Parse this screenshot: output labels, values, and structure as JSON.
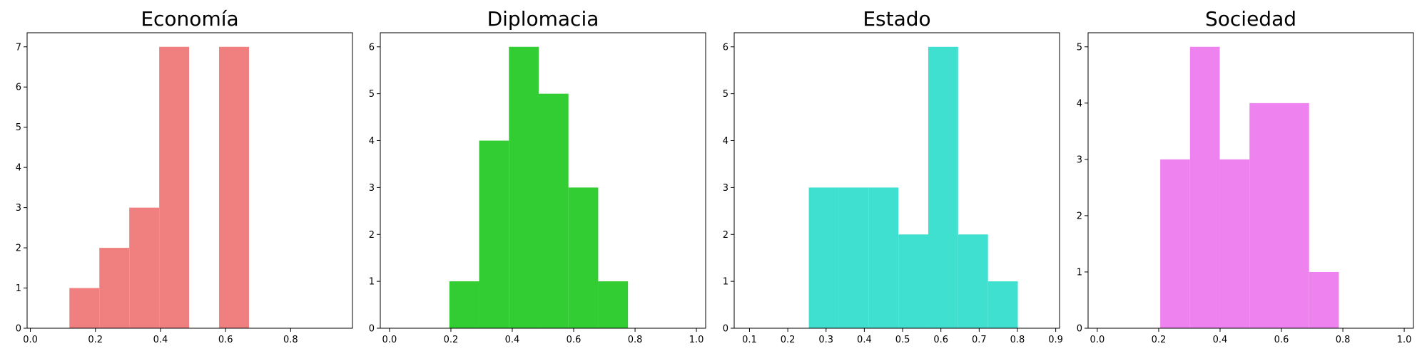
{
  "chart_data": [
    {
      "type": "bar",
      "title": "Economía",
      "color": "#f08080",
      "xlim": [
        -0.01,
        0.99
      ],
      "ylim": [
        0,
        7.35
      ],
      "xticks": [
        "0.0",
        "0.2",
        "0.4",
        "0.6",
        "0.8"
      ],
      "xtick_values": [
        0.0,
        0.2,
        0.4,
        0.6,
        0.8
      ],
      "yticks": [
        "0",
        "1",
        "2",
        "3",
        "4",
        "5",
        "6",
        "7"
      ],
      "ytick_values": [
        0,
        1,
        2,
        3,
        4,
        5,
        6,
        7
      ],
      "bins": [
        {
          "start": 0.12,
          "end": 0.212,
          "count": 1
        },
        {
          "start": 0.212,
          "end": 0.304,
          "count": 2
        },
        {
          "start": 0.304,
          "end": 0.396,
          "count": 3
        },
        {
          "start": 0.396,
          "end": 0.488,
          "count": 7
        },
        {
          "start": 0.488,
          "end": 0.58,
          "count": 0
        },
        {
          "start": 0.58,
          "end": 0.672,
          "count": 7
        }
      ]
    },
    {
      "type": "bar",
      "title": "Diplomacia",
      "color": "#32cd32",
      "xlim": [
        -0.03,
        1.03
      ],
      "ylim": [
        0,
        6.3
      ],
      "xticks": [
        "0.0",
        "0.2",
        "0.4",
        "0.6",
        "0.8",
        "1.0"
      ],
      "xtick_values": [
        0.0,
        0.2,
        0.4,
        0.6,
        0.8,
        1.0
      ],
      "yticks": [
        "0",
        "1",
        "2",
        "3",
        "4",
        "5",
        "6"
      ],
      "ytick_values": [
        0,
        1,
        2,
        3,
        4,
        5,
        6
      ],
      "bins": [
        {
          "start": 0.195,
          "end": 0.292,
          "count": 1
        },
        {
          "start": 0.292,
          "end": 0.389,
          "count": 4
        },
        {
          "start": 0.389,
          "end": 0.486,
          "count": 6
        },
        {
          "start": 0.486,
          "end": 0.583,
          "count": 5
        },
        {
          "start": 0.583,
          "end": 0.68,
          "count": 3
        },
        {
          "start": 0.68,
          "end": 0.777,
          "count": 1
        }
      ]
    },
    {
      "type": "bar",
      "title": "Estado",
      "color": "#40e0d0",
      "xlim": [
        0.06,
        0.91
      ],
      "ylim": [
        0,
        6.3
      ],
      "xticks": [
        "0.1",
        "0.2",
        "0.3",
        "0.4",
        "0.5",
        "0.6",
        "0.7",
        "0.8",
        "0.9"
      ],
      "xtick_values": [
        0.1,
        0.2,
        0.3,
        0.4,
        0.5,
        0.6,
        0.7,
        0.8,
        0.9
      ],
      "yticks": [
        "0",
        "1",
        "2",
        "3",
        "4",
        "5",
        "6"
      ],
      "ytick_values": [
        0,
        1,
        2,
        3,
        4,
        5,
        6
      ],
      "bins": [
        {
          "start": 0.255,
          "end": 0.333,
          "count": 3
        },
        {
          "start": 0.333,
          "end": 0.411,
          "count": 3
        },
        {
          "start": 0.411,
          "end": 0.489,
          "count": 3
        },
        {
          "start": 0.489,
          "end": 0.567,
          "count": 2
        },
        {
          "start": 0.567,
          "end": 0.645,
          "count": 6
        },
        {
          "start": 0.645,
          "end": 0.723,
          "count": 2
        },
        {
          "start": 0.723,
          "end": 0.801,
          "count": 1
        }
      ]
    },
    {
      "type": "bar",
      "title": "Sociedad",
      "color": "#ee82ee",
      "xlim": [
        -0.03,
        1.03
      ],
      "ylim": [
        0,
        5.25
      ],
      "xticks": [
        "0.0",
        "0.2",
        "0.4",
        "0.6",
        "0.8",
        "1.0"
      ],
      "xtick_values": [
        0.0,
        0.2,
        0.4,
        0.6,
        0.8,
        1.0
      ],
      "yticks": [
        "0",
        "1",
        "2",
        "3",
        "4",
        "5"
      ],
      "ytick_values": [
        0,
        1,
        2,
        3,
        4,
        5
      ],
      "bins": [
        {
          "start": 0.205,
          "end": 0.302,
          "count": 3
        },
        {
          "start": 0.302,
          "end": 0.399,
          "count": 5
        },
        {
          "start": 0.399,
          "end": 0.496,
          "count": 3
        },
        {
          "start": 0.496,
          "end": 0.593,
          "count": 4
        },
        {
          "start": 0.593,
          "end": 0.69,
          "count": 4
        },
        {
          "start": 0.69,
          "end": 0.787,
          "count": 1
        }
      ]
    }
  ]
}
